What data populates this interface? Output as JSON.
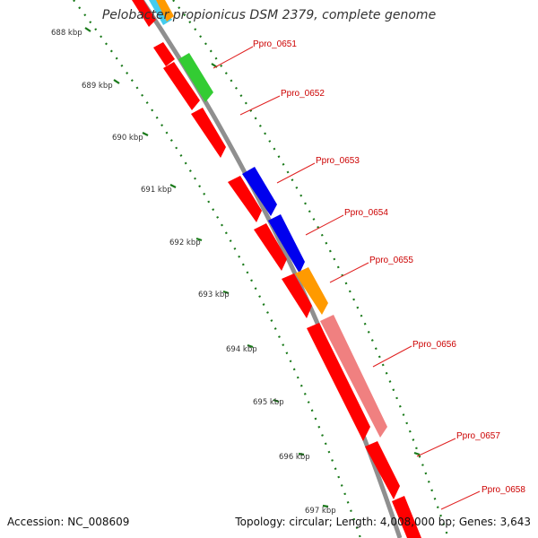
{
  "title": "Pelobacter propionicus DSM 2379, complete genome",
  "footer": {
    "accession": "Accession: NC_008609",
    "summary": "Topology: circular; Length: 4,008,000 bp; Genes: 3,643"
  },
  "ticks": [
    "688 kbp",
    "689 kbp",
    "690 kbp",
    "691 kbp",
    "692 kbp",
    "693 kbp",
    "694 kbp",
    "695 kbp",
    "696 kbp",
    "697 kbp"
  ],
  "gene_labels": [
    "Ppro_0651",
    "Ppro_0652",
    "Ppro_0653",
    "Ppro_0654",
    "Ppro_0655",
    "Ppro_0656",
    "Ppro_0657",
    "Ppro_0658"
  ],
  "colors": {
    "backbone": "#8f8f8f",
    "tick": "#1a7a1a",
    "label": "#cc0000",
    "leader": "#e02020",
    "gene_red": "#ff0000",
    "gene_blue": "#0000ee",
    "gene_orange": "#ff9a00",
    "gene_green": "#33cc33",
    "gene_pink": "#f08080",
    "gene_cyan": "#44ccee"
  }
}
